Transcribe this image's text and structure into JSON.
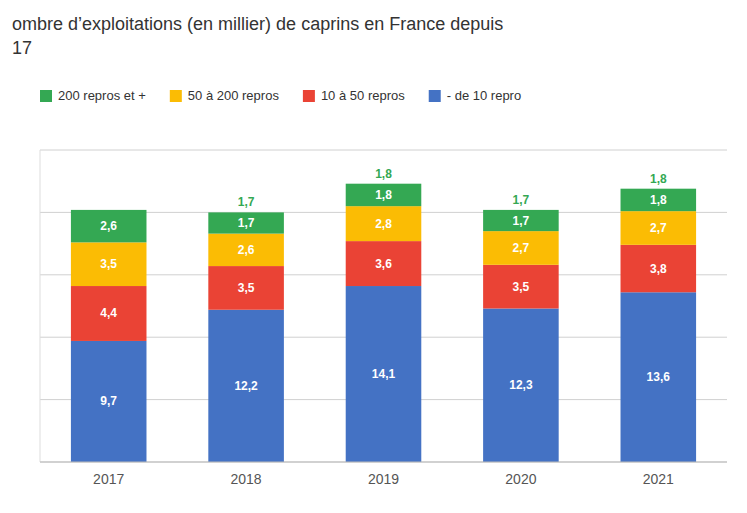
{
  "chart_data": {
    "type": "bar",
    "stacked": true,
    "title": "ombre d’exploitations (en millier) de caprins en France depuis\n17",
    "categories": [
      "2017",
      "2018",
      "2019",
      "2020",
      "2021"
    ],
    "series": [
      {
        "name": "- de 10 repro",
        "color": "#4472C4",
        "values": [
          9.7,
          12.2,
          14.1,
          12.3,
          13.6
        ],
        "value_labels": [
          "9,7",
          "12,2",
          "14,1",
          "12,3",
          "13,6"
        ]
      },
      {
        "name": "10 à 50 repros",
        "color": "#EA4335",
        "values": [
          4.4,
          3.5,
          3.6,
          3.5,
          3.8
        ],
        "value_labels": [
          "4,4",
          "3,5",
          "3,6",
          "3,5",
          "3,8"
        ]
      },
      {
        "name": "50 à 200 repros",
        "color": "#FBBC04",
        "values": [
          3.5,
          2.6,
          2.8,
          2.7,
          2.7
        ],
        "value_labels": [
          "3,5",
          "2,6",
          "2,8",
          "2,7",
          "2,7"
        ]
      },
      {
        "name": "200 repros et +",
        "color": "#34A853",
        "values": [
          2.6,
          1.7,
          1.8,
          1.7,
          1.8
        ],
        "value_labels": [
          "2,6",
          "1,7",
          "1,8",
          "1,7",
          "1,8"
        ]
      }
    ],
    "annotations": [
      {
        "category": "2018",
        "text": "1,7",
        "color": "#34A853"
      },
      {
        "category": "2019",
        "text": "1,8",
        "color": "#34A853"
      },
      {
        "category": "2020",
        "text": "1,7",
        "color": "#34A853"
      },
      {
        "category": "2021",
        "text": "1,8",
        "color": "#34A853"
      }
    ],
    "ylim": [
      0,
      25
    ],
    "yticks": [
      0,
      5,
      10,
      15,
      20,
      25
    ],
    "grid": true,
    "tick_labels": "x",
    "data_labels": true,
    "legend": "top"
  }
}
